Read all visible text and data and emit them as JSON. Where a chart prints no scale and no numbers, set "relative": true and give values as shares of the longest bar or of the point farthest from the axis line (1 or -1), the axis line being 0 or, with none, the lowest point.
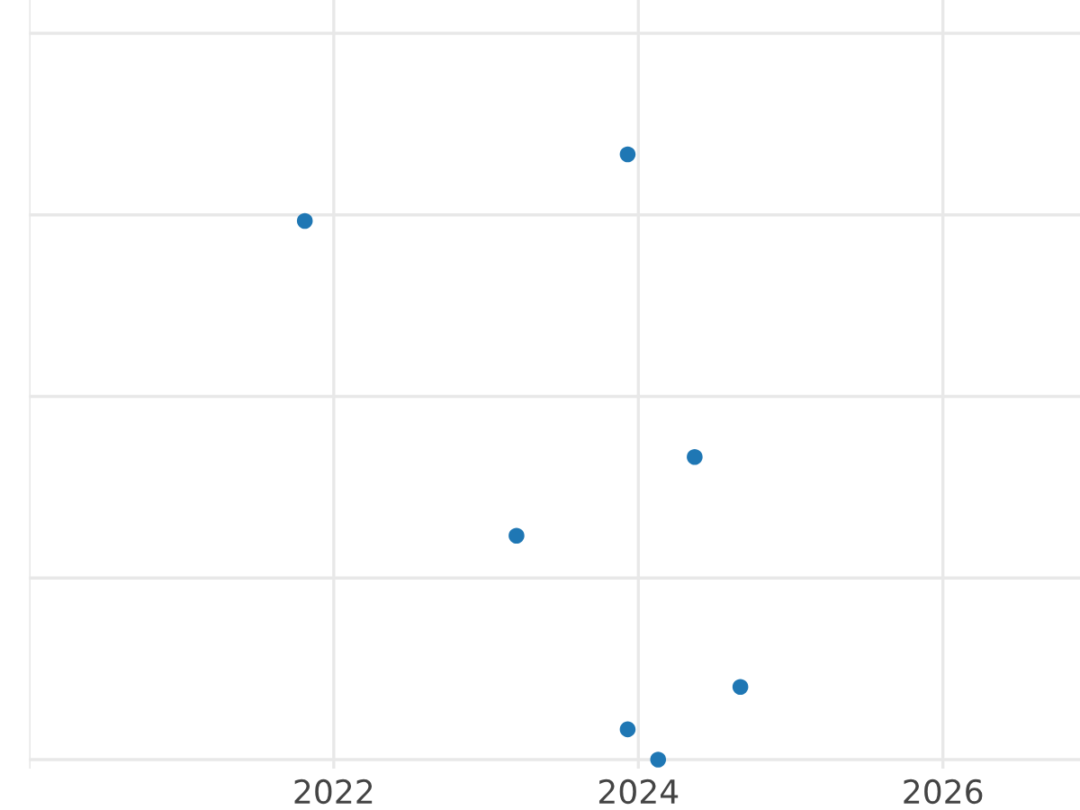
{
  "chart_data": {
    "type": "scatter",
    "relative": true,
    "x": [
      2021.81,
      2023.93,
      2024.37,
      2023.2,
      2024.67,
      2023.93,
      2024.13
    ],
    "series": [
      {
        "color": "#1f77b4",
        "values": [
          0.89,
          1,
          0.5,
          0.37,
          0.12,
          0.05,
          0
        ]
      }
    ],
    "xlim": [
      2020,
      2026.9
    ],
    "xticks": [
      {
        "value": 2020,
        "label": null
      },
      2022,
      2024,
      2026
    ],
    "grid": true,
    "marker": "circle"
  }
}
